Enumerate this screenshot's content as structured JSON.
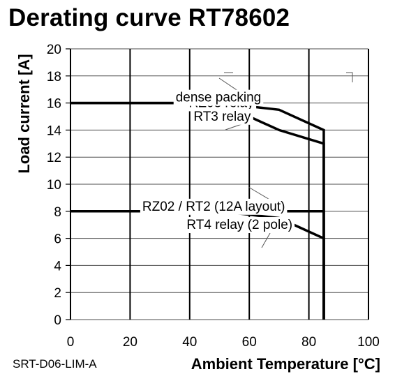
{
  "chart_data": {
    "type": "line",
    "title": "Derating curve RT78602",
    "xlabel": "Ambient Temperature [°C]",
    "ylabel": "Load current [A]",
    "xlim": [
      0,
      100
    ],
    "ylim": [
      0,
      20
    ],
    "x_ticks": [
      0,
      20,
      40,
      60,
      80,
      100
    ],
    "y_ticks": [
      0,
      2,
      4,
      6,
      8,
      10,
      12,
      14,
      16,
      18,
      20
    ],
    "grid": true,
    "series": [
      {
        "name": "RZ03 relay dense packing",
        "x": [
          0,
          50,
          70,
          85,
          85
        ],
        "y": [
          16,
          16,
          15.5,
          14,
          0
        ]
      },
      {
        "name": "RT3 relay",
        "x": [
          0,
          50,
          70,
          85,
          85
        ],
        "y": [
          16,
          16,
          14,
          13,
          0
        ]
      },
      {
        "name": "RZ02 / RT2 (12A layout)",
        "x": [
          0,
          85,
          85
        ],
        "y": [
          8,
          8,
          0
        ]
      },
      {
        "name": "RT4 relay (2 pole)",
        "x": [
          0,
          50,
          70,
          85,
          85
        ],
        "y": [
          8,
          8,
          7.5,
          6,
          0
        ]
      }
    ],
    "annotations": [
      {
        "text": "RZ03 relay",
        "x": 61.5,
        "y": 15.7
      },
      {
        "text": "dense packing",
        "x": 64,
        "y": 16.1
      },
      {
        "text": "RT3 relay",
        "x": 60.5,
        "y": 14.7
      },
      {
        "text": "RZ02 / RT2 (12A layout)",
        "x": 72,
        "y": 8.05
      },
      {
        "text": "RT4 relay (2 pole)",
        "x": 74.5,
        "y": 6.7
      }
    ]
  },
  "figure_code": "SRT-D06-LIM-A"
}
